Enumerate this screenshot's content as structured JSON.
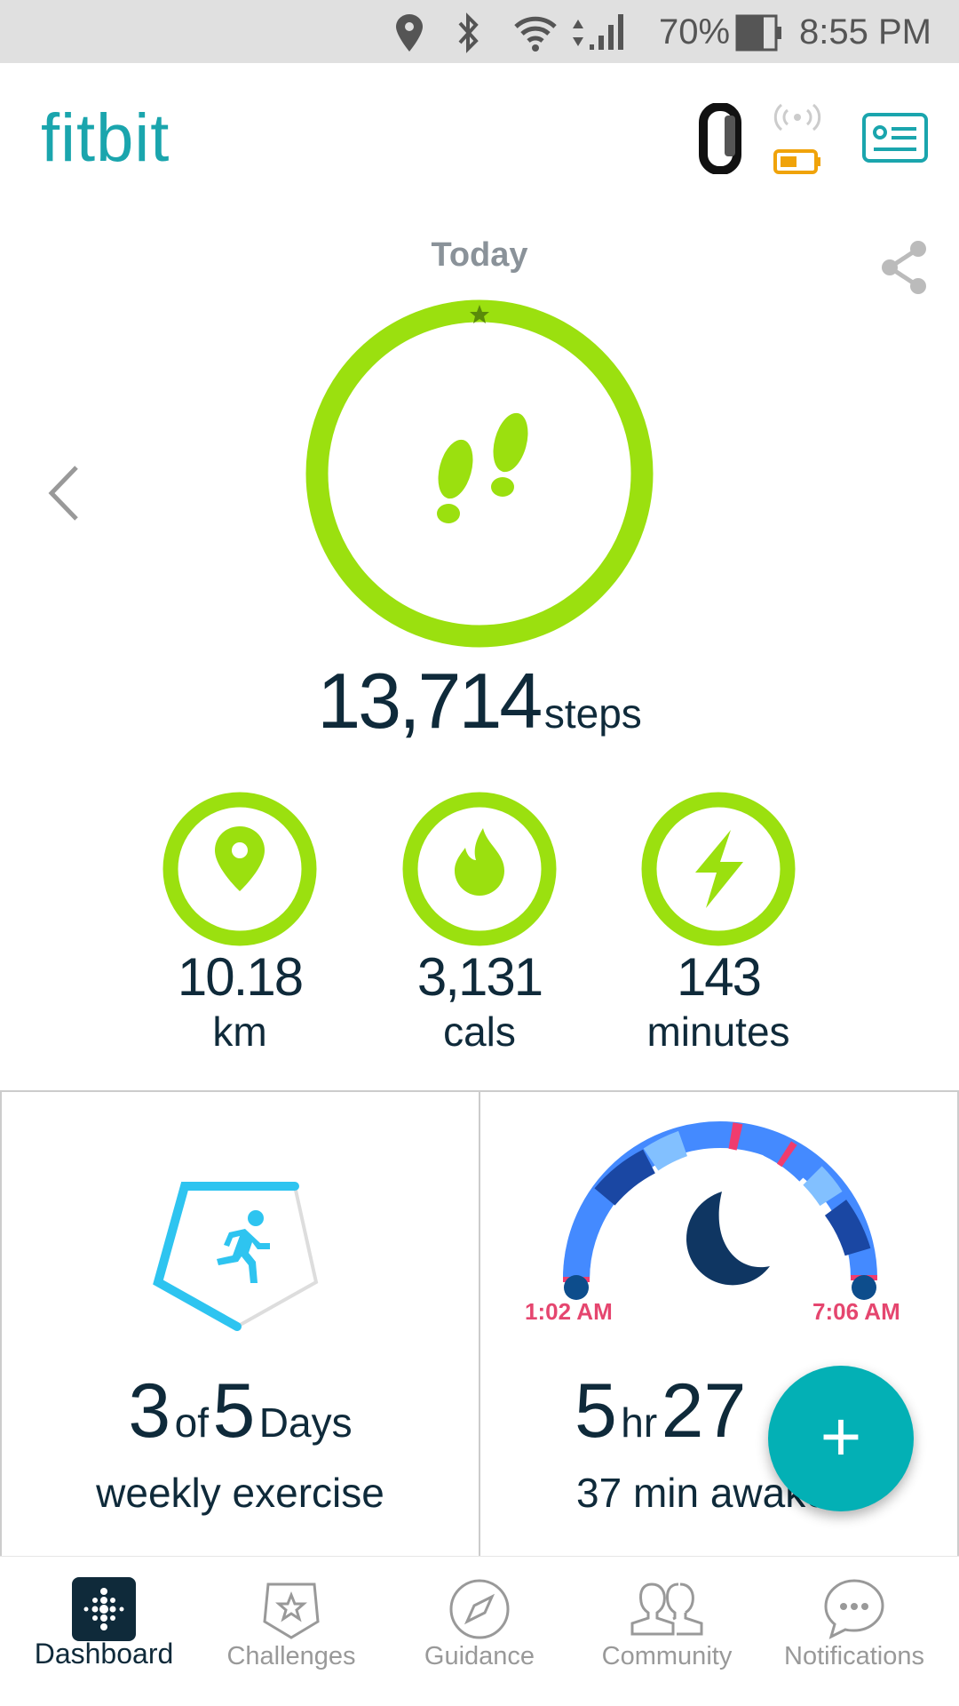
{
  "status_bar": {
    "battery": "70%",
    "time": "8:55 PM",
    "icons": [
      "location-icon",
      "bluetooth-icon",
      "wifi-icon",
      "signal-icon",
      "battery-icon"
    ]
  },
  "header": {
    "logo": "fitbit",
    "icons": [
      "tracker-band-icon",
      "tracker-battery-icon",
      "profile-card-icon"
    ],
    "brand_color": "#1aa5ad"
  },
  "summary": {
    "day_label": "Today",
    "steps_value": "13,714",
    "steps_unit": "steps",
    "goal_color": "#9be00f",
    "stats": [
      {
        "icon": "location-icon",
        "value": "10.18",
        "unit": "km"
      },
      {
        "icon": "flame-icon",
        "value": "3,131",
        "unit": "cals"
      },
      {
        "icon": "lightning-icon",
        "value": "143",
        "unit": "minutes"
      }
    ]
  },
  "exercise_card": {
    "done": "3",
    "of": "of",
    "goal": "5",
    "days": "Days",
    "label": "weekly exercise",
    "progress": 0.6
  },
  "sleep_card": {
    "start": "1:02 AM",
    "end": "7:06 AM",
    "hours": "5",
    "hr": "hr",
    "minutes": "27",
    "awake": "37 min awake"
  },
  "fab": {
    "label": "+"
  },
  "nav": [
    {
      "label": "Dashboard",
      "active": true
    },
    {
      "label": "Challenges"
    },
    {
      "label": "Guidance"
    },
    {
      "label": "Community"
    },
    {
      "label": "Notifications"
    }
  ]
}
